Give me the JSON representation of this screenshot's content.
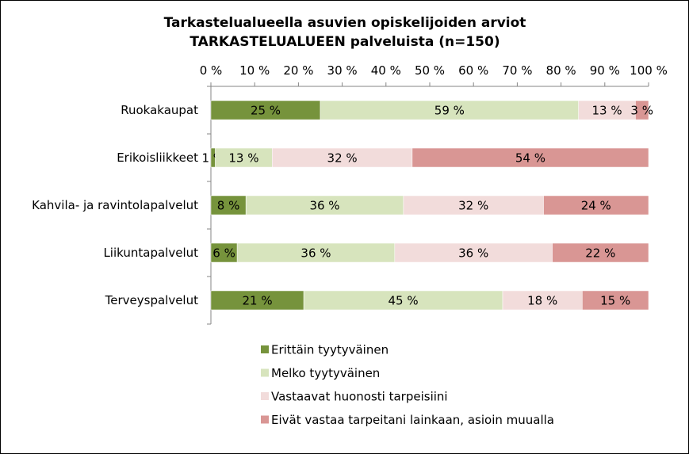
{
  "chart_data": {
    "type": "bar",
    "orientation": "horizontal",
    "stacked": "percent",
    "title": [
      "Tarkastelualueella asuvien opiskelijoiden arviot",
      "TARKASTELUALUEEN palveluista (n=150)"
    ],
    "xlim": [
      0,
      100
    ],
    "x_ticks": [
      "0 %",
      "10 %",
      "20 %",
      "30 %",
      "40 %",
      "50 %",
      "60 %",
      "70 %",
      "80 %",
      "90 %",
      "100 %"
    ],
    "x_axis_position": "top",
    "grid": false,
    "legend_position": "bottom",
    "categories": [
      "Ruokakaupat",
      "Erikoisliikkeet",
      "Kahvila- ja ravintolapalvelut",
      "Liikuntapalvelut",
      "Terveyspalvelut"
    ],
    "series": [
      {
        "name": "Erittäin tyytyväinen",
        "color": "#76933c",
        "values": [
          25,
          1,
          8,
          6,
          21
        ],
        "labels": [
          "25 %",
          "1 %",
          "8 %",
          "6 %",
          "21 %"
        ]
      },
      {
        "name": "Melko tyytyväinen",
        "color": "#d7e4bd",
        "values": [
          59,
          13,
          36,
          36,
          45
        ],
        "labels": [
          "59 %",
          "13 %",
          "36 %",
          "36 %",
          "45 %"
        ]
      },
      {
        "name": "Vastaavat huonosti tarpeisiini",
        "color": "#f2dcdb",
        "values": [
          13,
          32,
          32,
          36,
          18
        ],
        "labels": [
          "13 %",
          "32 %",
          "32 %",
          "36 %",
          "18 %"
        ]
      },
      {
        "name": "Eivät vastaa tarpeitani lainkaan, asioin muualla",
        "color": "#d99694",
        "values": [
          3,
          54,
          24,
          22,
          15
        ],
        "labels": [
          "3 %",
          "54 %",
          "24 %",
          "22 %",
          "15 %"
        ]
      }
    ]
  }
}
